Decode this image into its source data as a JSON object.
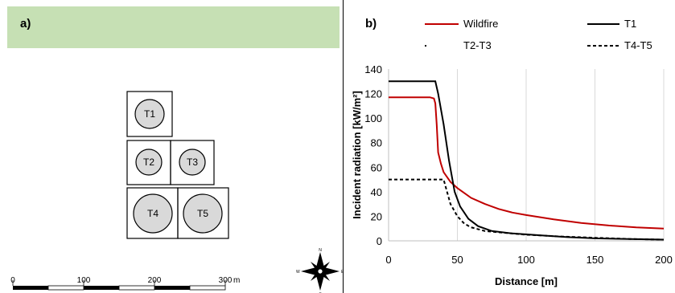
{
  "panel_a": {
    "label": "a)",
    "tanks": [
      "T1",
      "T2",
      "T3",
      "T4",
      "T5"
    ],
    "scale_bar": {
      "ticks": [
        "0",
        "100",
        "200",
        "300"
      ],
      "unit": "m"
    },
    "compass": {
      "n": "N",
      "s": "S",
      "e": "E",
      "w": "W"
    },
    "colors": {
      "header_band": "#c6e0b4",
      "tank_fill": "#d9d9d9"
    }
  },
  "panel_b": {
    "label": "b)"
  },
  "chart_data": {
    "type": "line",
    "xlabel": "Distance [m]",
    "ylabel": "Incident radiation [kW/m²]",
    "xlim": [
      0,
      200
    ],
    "ylim": [
      0,
      140
    ],
    "xticks": [
      "0",
      "50",
      "100",
      "150",
      "200"
    ],
    "yticks": [
      "0",
      "20",
      "40",
      "60",
      "80",
      "100",
      "120",
      "140"
    ],
    "grid": "vertical",
    "legend_position": "top",
    "series": [
      {
        "name": "Wildfire",
        "color": "#c00000",
        "style": "solid",
        "points": [
          [
            0,
            117
          ],
          [
            30,
            117
          ],
          [
            33,
            116
          ],
          [
            34,
            112
          ],
          [
            35,
            95
          ],
          [
            36,
            72
          ],
          [
            38,
            63
          ],
          [
            40,
            56
          ],
          [
            45,
            48
          ],
          [
            50,
            43
          ],
          [
            55,
            39
          ],
          [
            60,
            35
          ],
          [
            70,
            30
          ],
          [
            80,
            26
          ],
          [
            90,
            23
          ],
          [
            100,
            21
          ],
          [
            120,
            17.5
          ],
          [
            140,
            14.5
          ],
          [
            160,
            12.5
          ],
          [
            180,
            11
          ],
          [
            200,
            10
          ]
        ]
      },
      {
        "name": "T1",
        "color": "#000000",
        "style": "solid",
        "points": [
          [
            0,
            130
          ],
          [
            34,
            130
          ],
          [
            36,
            120
          ],
          [
            40,
            95
          ],
          [
            44,
            65
          ],
          [
            48,
            40
          ],
          [
            52,
            28
          ],
          [
            58,
            18
          ],
          [
            65,
            12
          ],
          [
            75,
            8
          ],
          [
            90,
            6
          ],
          [
            110,
            4.5
          ],
          [
            130,
            3
          ],
          [
            150,
            2
          ],
          [
            175,
            1.5
          ],
          [
            200,
            1
          ]
        ]
      },
      {
        "name": "T2-T3",
        "color": "#000000",
        "style": "dotted",
        "points": []
      },
      {
        "name": "T4-T5",
        "color": "#000000",
        "style": "dashed",
        "points": [
          [
            0,
            50
          ],
          [
            40,
            50
          ],
          [
            42,
            42
          ],
          [
            45,
            30
          ],
          [
            50,
            20
          ],
          [
            55,
            14
          ],
          [
            60,
            11
          ],
          [
            70,
            8
          ],
          [
            85,
            6.5
          ],
          [
            100,
            5
          ],
          [
            125,
            3.5
          ],
          [
            150,
            2.5
          ],
          [
            175,
            1.5
          ],
          [
            200,
            1
          ]
        ]
      }
    ]
  }
}
